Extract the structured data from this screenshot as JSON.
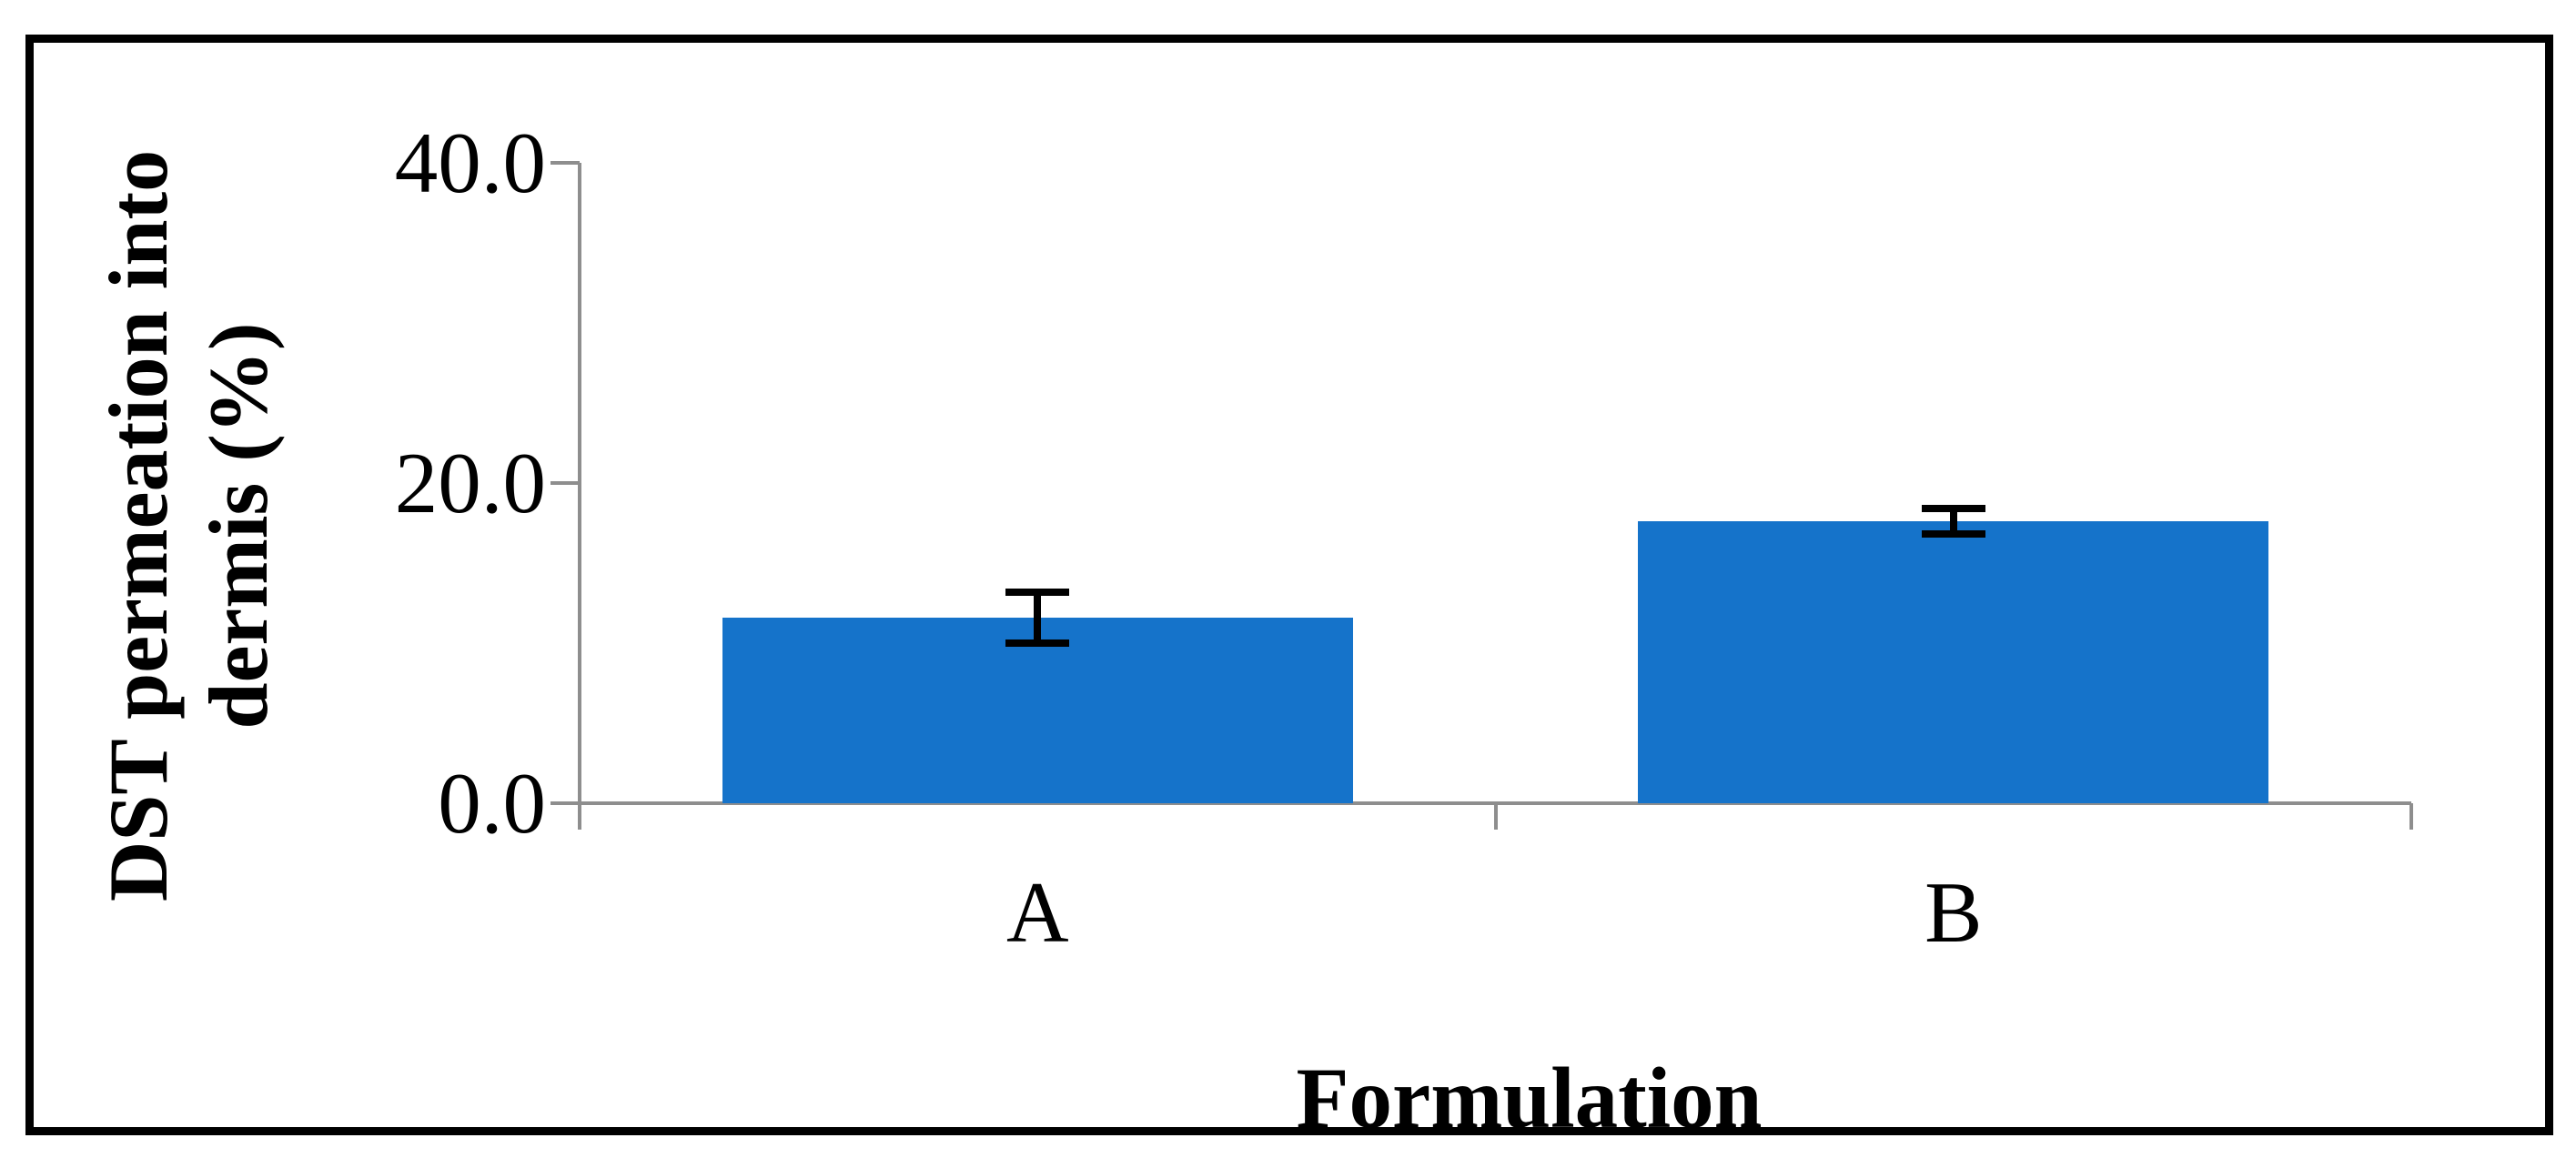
{
  "figure": {
    "background": "#FFFFFF",
    "frame_color": "#000000"
  },
  "chart_data": {
    "type": "bar",
    "title": "",
    "categories": [
      "A",
      "B"
    ],
    "values": [
      11.6,
      17.6
    ],
    "error_bars": [
      1.6,
      0.8
    ],
    "xlabel": "Formulation",
    "ylabel": "DST permeation into dermis (%)",
    "ylabel_lines": [
      "DST permeation into",
      "dermis (%)"
    ],
    "ylim": [
      0,
      40
    ],
    "ytick_values": [
      0,
      20,
      40
    ],
    "ytick_labels": [
      "0.0",
      "20.0",
      "40.0"
    ],
    "grid": false,
    "legend": "none",
    "colors": {
      "bar": "#1573CA",
      "axis": "#8E8E8E",
      "error": "#000000",
      "text": "#000000"
    }
  }
}
